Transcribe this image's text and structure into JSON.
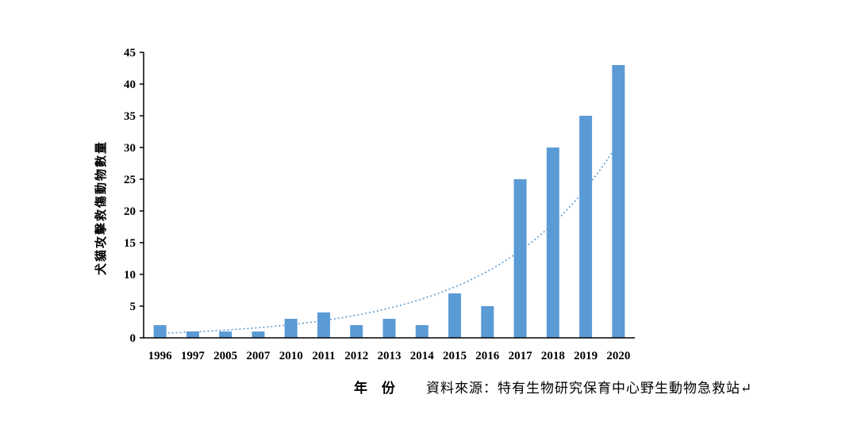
{
  "chart_data": {
    "type": "bar",
    "categories": [
      "1996",
      "1997",
      "2005",
      "2007",
      "2010",
      "2011",
      "2012",
      "2013",
      "2014",
      "2015",
      "2016",
      "2017",
      "2018",
      "2019",
      "2020"
    ],
    "values": [
      2,
      1,
      1,
      1,
      3,
      4,
      2,
      3,
      2,
      7,
      5,
      25,
      30,
      35,
      43
    ],
    "ylabel": "犬貓攻擊救傷動物數量",
    "xlabel": "年 份",
    "ylim": [
      0,
      45
    ],
    "yticks": [
      0,
      5,
      10,
      15,
      20,
      25,
      30,
      35,
      40,
      45
    ],
    "grid": false,
    "trendline": "exponential",
    "colors": {
      "bar": "#5b9bd5",
      "trend": "#5b9bd5",
      "axis": "#000000"
    }
  },
  "source_note": "資料來源：特有生物研究保育中心野生動物急救站↵"
}
